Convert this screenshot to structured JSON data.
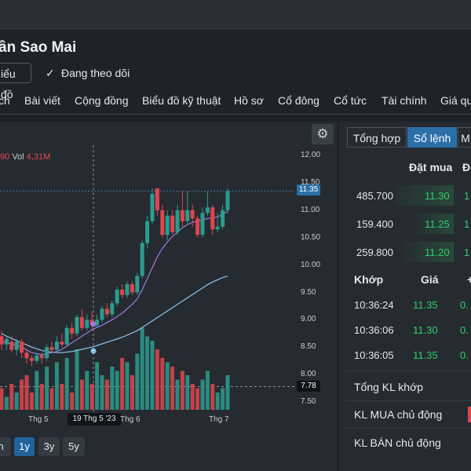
{
  "stock": {
    "title": "ần Sao Mai",
    "chart_chip": "iểu đồ",
    "follow_label": "Đang theo dõi"
  },
  "nav": [
    "ch",
    "Bài viết",
    "Cộng đồng",
    "Biểu đồ kỹ thuật",
    "Hồ sơ",
    "Cổ đông",
    "Cổ tức",
    "Tài chính",
    "Giá qu"
  ],
  "legend": {
    "value": "90",
    "vol_label": "Vol",
    "vol_value": "4,31M"
  },
  "y_axis": [
    "12.00",
    "11.50",
    "11.00",
    "10.50",
    "10.00",
    "9.50",
    "9.00",
    "8.50",
    "8.00",
    "7.50"
  ],
  "price_tags": {
    "last": "11.35",
    "crosshair": "7.78"
  },
  "x_axis": {
    "labels": [
      "Thg 5",
      "Thg 6",
      "Thg 7"
    ],
    "tooltip": "19 Thg 5 '23"
  },
  "ranges": [
    {
      "label": "n",
      "active": false
    },
    {
      "label": "1y",
      "active": true
    },
    {
      "label": "3y",
      "active": false
    },
    {
      "label": "5y",
      "active": false
    }
  ],
  "tabs": [
    {
      "label": "Tổng hợp",
      "active": false
    },
    {
      "label": "Sổ lệnh",
      "active": true
    },
    {
      "label": "M",
      "active": false
    }
  ],
  "order_book": {
    "header": "Đặt mua",
    "header_next": "Đ",
    "rows": [
      {
        "volume": "485.700",
        "price": "11.30",
        "extra": "1"
      },
      {
        "volume": "159.400",
        "price": "11.25",
        "extra": "1"
      },
      {
        "volume": "259.800",
        "price": "11.20",
        "extra": "1"
      }
    ]
  },
  "matches": {
    "headers": {
      "time": "Khớp",
      "price": "Giá",
      "change": "+"
    },
    "rows": [
      {
        "time": "10:36:24",
        "price": "11.35",
        "change": "0."
      },
      {
        "time": "10:36:06",
        "price": "11.30",
        "change": "0."
      },
      {
        "time": "10:36:05",
        "price": "11.35",
        "change": "0."
      }
    ]
  },
  "summary": [
    "Tổng KL khớp",
    "KL MUA chủ động",
    "KL BÁN chủ động"
  ],
  "colors": {
    "up": "#2a9d8f",
    "down": "#e0464f",
    "ma_fast": "#9b7ae0",
    "ma_slow": "#8fc3ea",
    "accent": "#2c6fa8"
  },
  "chart_data": {
    "type": "candlestick",
    "y_range": [
      7.5,
      12.0
    ],
    "x_labels": [
      "Thg 5",
      "Thg 6",
      "Thg 7"
    ],
    "candles": [
      {
        "o": 8.7,
        "c": 8.55,
        "h": 8.8,
        "l": 8.45
      },
      {
        "o": 8.55,
        "c": 8.65,
        "h": 8.7,
        "l": 8.45
      },
      {
        "o": 8.6,
        "c": 8.45,
        "h": 8.7,
        "l": 8.4
      },
      {
        "o": 8.45,
        "c": 8.6,
        "h": 8.65,
        "l": 8.35
      },
      {
        "o": 8.6,
        "c": 8.4,
        "h": 8.65,
        "l": 8.3
      },
      {
        "o": 8.4,
        "c": 8.3,
        "h": 8.45,
        "l": 8.2
      },
      {
        "o": 8.3,
        "c": 8.25,
        "h": 8.35,
        "l": 8.15
      },
      {
        "o": 8.25,
        "c": 8.35,
        "h": 8.4,
        "l": 8.2
      },
      {
        "o": 8.35,
        "c": 8.3,
        "h": 8.4,
        "l": 8.2
      },
      {
        "o": 8.3,
        "c": 8.5,
        "h": 8.55,
        "l": 8.25
      },
      {
        "o": 8.5,
        "c": 8.45,
        "h": 8.6,
        "l": 8.4
      },
      {
        "o": 8.45,
        "c": 8.6,
        "h": 8.7,
        "l": 8.4
      },
      {
        "o": 8.6,
        "c": 8.55,
        "h": 8.75,
        "l": 8.5
      },
      {
        "o": 8.55,
        "c": 8.85,
        "h": 8.9,
        "l": 8.5
      },
      {
        "o": 8.85,
        "c": 8.75,
        "h": 8.95,
        "l": 8.65
      },
      {
        "o": 8.75,
        "c": 9.05,
        "h": 9.1,
        "l": 8.7
      },
      {
        "o": 9.05,
        "c": 8.85,
        "h": 9.2,
        "l": 8.8
      },
      {
        "o": 8.85,
        "c": 9.0,
        "h": 9.1,
        "l": 8.8
      },
      {
        "o": 9.0,
        "c": 8.9,
        "h": 9.15,
        "l": 8.8
      },
      {
        "o": 8.9,
        "c": 9.0,
        "h": 9.1,
        "l": 8.85
      },
      {
        "o": 9.0,
        "c": 9.2,
        "h": 9.25,
        "l": 8.95
      },
      {
        "o": 9.2,
        "c": 9.1,
        "h": 9.3,
        "l": 9.05
      },
      {
        "o": 9.1,
        "c": 9.3,
        "h": 9.35,
        "l": 9.05
      },
      {
        "o": 9.3,
        "c": 9.55,
        "h": 9.6,
        "l": 9.25
      },
      {
        "o": 9.55,
        "c": 9.45,
        "h": 9.65,
        "l": 9.4
      },
      {
        "o": 9.45,
        "c": 9.65,
        "h": 9.7,
        "l": 9.4
      },
      {
        "o": 9.65,
        "c": 9.5,
        "h": 9.7,
        "l": 9.45
      },
      {
        "o": 9.5,
        "c": 9.8,
        "h": 9.85,
        "l": 9.45
      },
      {
        "o": 9.8,
        "c": 10.4,
        "h": 10.45,
        "l": 9.75
      },
      {
        "o": 10.4,
        "c": 10.8,
        "h": 10.9,
        "l": 10.3
      },
      {
        "o": 10.8,
        "c": 11.3,
        "h": 11.4,
        "l": 10.75
      },
      {
        "o": 11.4,
        "c": 11.0,
        "h": 11.4,
        "l": 10.9
      },
      {
        "o": 11.0,
        "c": 10.55,
        "h": 11.1,
        "l": 10.5
      },
      {
        "o": 10.55,
        "c": 10.9,
        "h": 11.0,
        "l": 10.45
      },
      {
        "o": 10.9,
        "c": 10.6,
        "h": 11.0,
        "l": 10.55
      },
      {
        "o": 10.6,
        "c": 11.0,
        "h": 11.1,
        "l": 10.55
      },
      {
        "o": 11.0,
        "c": 10.8,
        "h": 11.35,
        "l": 10.7
      },
      {
        "o": 10.8,
        "c": 11.0,
        "h": 11.35,
        "l": 10.75
      },
      {
        "o": 11.0,
        "c": 10.85,
        "h": 11.1,
        "l": 10.7
      },
      {
        "o": 10.85,
        "c": 10.55,
        "h": 10.9,
        "l": 10.5
      },
      {
        "o": 10.55,
        "c": 10.95,
        "h": 11.05,
        "l": 10.5
      },
      {
        "o": 10.95,
        "c": 11.05,
        "h": 11.35,
        "l": 10.9
      },
      {
        "o": 11.05,
        "c": 10.65,
        "h": 11.1,
        "l": 10.55
      },
      {
        "o": 10.65,
        "c": 10.7,
        "h": 10.95,
        "l": 10.6
      },
      {
        "o": 10.7,
        "c": 11.0,
        "h": 11.1,
        "l": 10.65
      },
      {
        "o": 11.0,
        "c": 11.35,
        "h": 11.4,
        "l": 10.95
      }
    ],
    "ma_fast": [
      8.6,
      8.58,
      8.56,
      8.54,
      8.5,
      8.45,
      8.4,
      8.38,
      8.36,
      8.38,
      8.4,
      8.42,
      8.46,
      8.52,
      8.58,
      8.64,
      8.7,
      8.76,
      8.82,
      8.86,
      8.9,
      8.95,
      9.0,
      9.06,
      9.12,
      9.2,
      9.28,
      9.38,
      9.55,
      9.75,
      9.95,
      10.15,
      10.3,
      10.42,
      10.52,
      10.6,
      10.68,
      10.74,
      10.78,
      10.8,
      10.82,
      10.85,
      10.86,
      10.88,
      10.92,
      10.98
    ],
    "ma_slow": [
      8.75,
      8.7,
      8.66,
      8.62,
      8.58,
      8.54,
      8.5,
      8.47,
      8.44,
      8.42,
      8.41,
      8.4,
      8.4,
      8.41,
      8.42,
      8.44,
      8.46,
      8.48,
      8.5,
      8.53,
      8.56,
      8.59,
      8.62,
      8.65,
      8.68,
      8.72,
      8.76,
      8.8,
      8.86,
      8.92,
      8.98,
      9.04,
      9.1,
      9.16,
      9.22,
      9.28,
      9.34,
      9.4,
      9.46,
      9.52,
      9.58,
      9.64,
      9.69,
      9.73,
      9.77,
      9.8
    ],
    "volumes": [
      0.25,
      0.15,
      0.3,
      0.2,
      0.35,
      0.4,
      0.2,
      0.45,
      0.3,
      0.5,
      0.25,
      0.55,
      0.3,
      0.6,
      0.2,
      0.7,
      0.35,
      0.45,
      0.3,
      0.55,
      0.4,
      0.35,
      0.5,
      0.45,
      0.6,
      0.55,
      0.4,
      0.65,
      0.95,
      0.85,
      0.8,
      0.7,
      0.6,
      0.55,
      0.5,
      0.35,
      0.45,
      0.4,
      0.3,
      0.25,
      0.35,
      0.45,
      0.3,
      0.2,
      0.25,
      0.4
    ]
  }
}
